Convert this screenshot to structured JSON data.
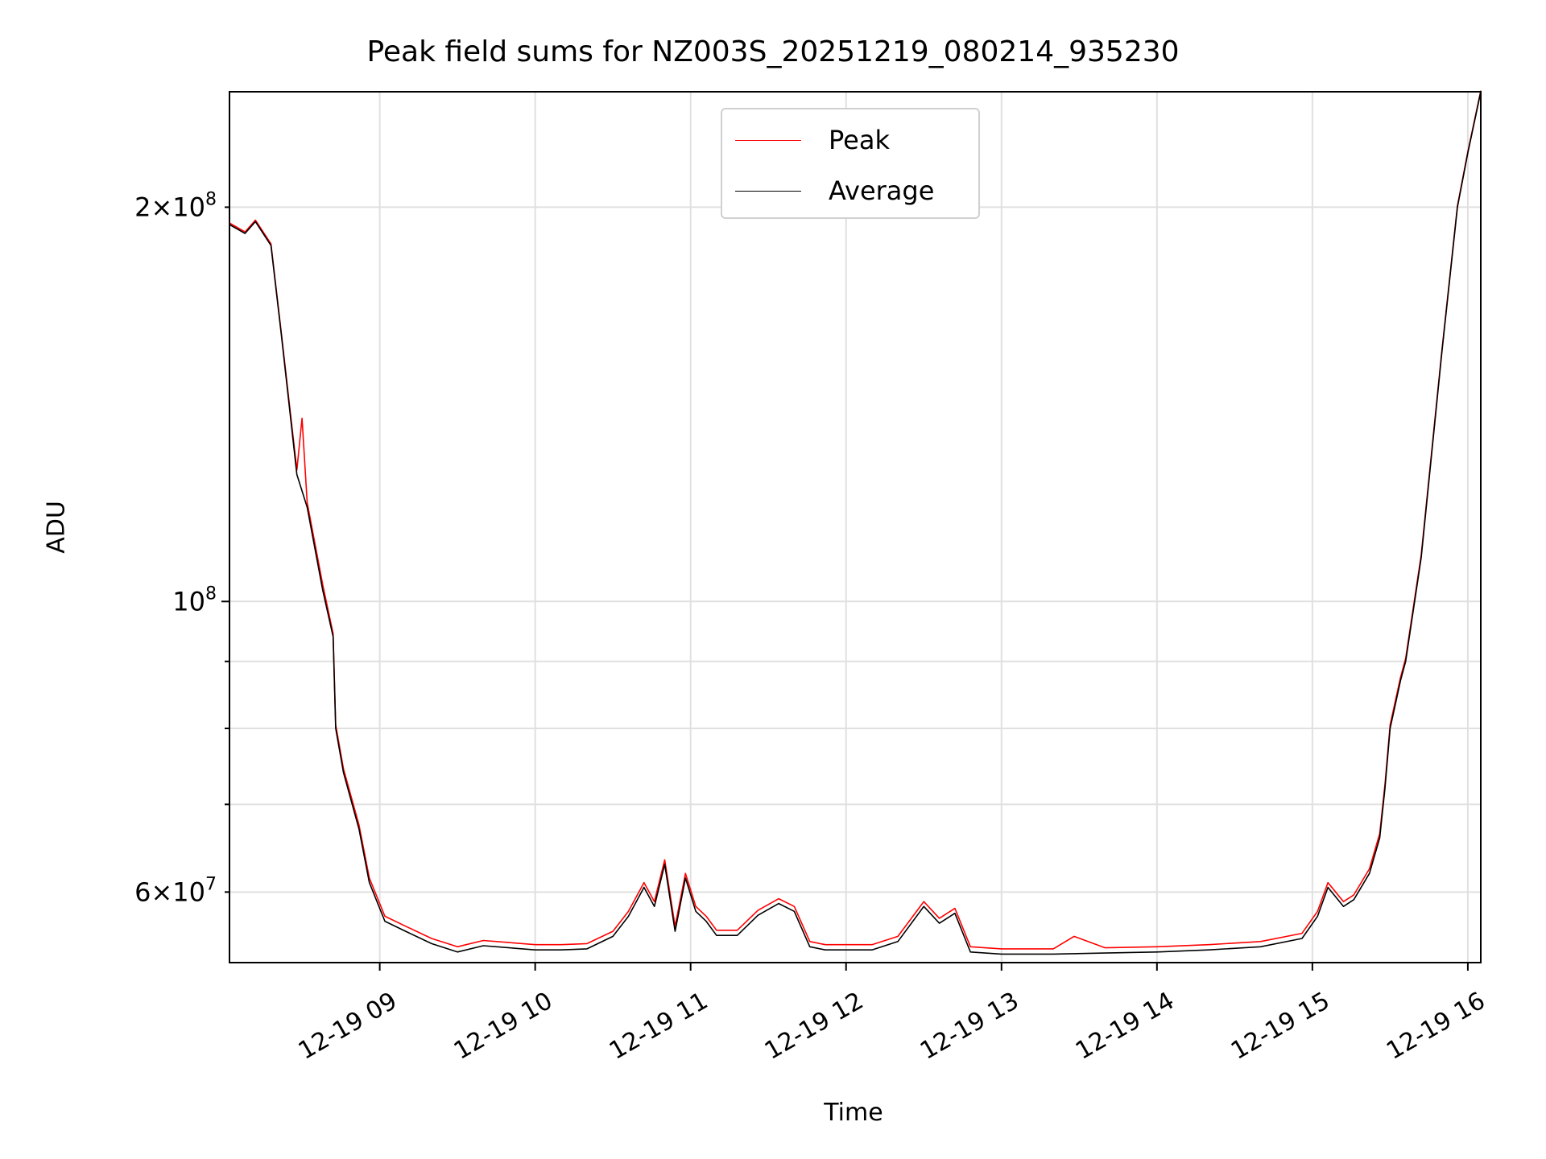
{
  "chart_data": {
    "type": "line",
    "title": "Peak field sums for NZ003S_20251219_080214_935230",
    "xlabel": "Time",
    "ylabel": "ADU",
    "yscale": "log",
    "xlim": [
      "2025-12-19 08:02",
      "2025-12-19 16:05"
    ],
    "ylim": [
      53000000,
      245000000
    ],
    "x_ticks": [
      {
        "value": "2025-12-19 09:00",
        "label": "12-19 09"
      },
      {
        "value": "2025-12-19 10:00",
        "label": "12-19 10"
      },
      {
        "value": "2025-12-19 11:00",
        "label": "12-19 11"
      },
      {
        "value": "2025-12-19 12:00",
        "label": "12-19 12"
      },
      {
        "value": "2025-12-19 13:00",
        "label": "12-19 13"
      },
      {
        "value": "2025-12-19 14:00",
        "label": "12-19 14"
      },
      {
        "value": "2025-12-19 15:00",
        "label": "12-19 15"
      },
      {
        "value": "2025-12-19 16:00",
        "label": "12-19 16"
      }
    ],
    "y_major_ticks": [
      {
        "value": 100000000,
        "label": "10^8"
      }
    ],
    "y_minor_ticks": [
      {
        "value": 60000000,
        "label": "6×10^7"
      },
      {
        "value": 70000000,
        "label": ""
      },
      {
        "value": 80000000,
        "label": ""
      },
      {
        "value": 90000000,
        "label": ""
      },
      {
        "value": 200000000,
        "label": "2×10^8"
      }
    ],
    "grid": true,
    "legend_position": "top-center",
    "series": [
      {
        "name": "Average",
        "color": "#000000",
        "x": [
          "2025-12-19 08:02",
          "2025-12-19 08:08",
          "2025-12-19 08:12",
          "2025-12-19 08:18",
          "2025-12-19 08:22",
          "2025-12-19 08:28",
          "2025-12-19 08:32",
          "2025-12-19 08:38",
          "2025-12-19 08:42",
          "2025-12-19 08:43",
          "2025-12-19 08:46",
          "2025-12-19 08:52",
          "2025-12-19 08:56",
          "2025-12-19 09:02",
          "2025-12-19 09:10",
          "2025-12-19 09:20",
          "2025-12-19 09:30",
          "2025-12-19 09:40",
          "2025-12-19 09:50",
          "2025-12-19 10:00",
          "2025-12-19 10:10",
          "2025-12-19 10:20",
          "2025-12-19 10:30",
          "2025-12-19 10:36",
          "2025-12-19 10:42",
          "2025-12-19 10:46",
          "2025-12-19 10:50",
          "2025-12-19 10:54",
          "2025-12-19 10:58",
          "2025-12-19 11:02",
          "2025-12-19 11:06",
          "2025-12-19 11:10",
          "2025-12-19 11:18",
          "2025-12-19 11:26",
          "2025-12-19 11:34",
          "2025-12-19 11:40",
          "2025-12-19 11:46",
          "2025-12-19 11:52",
          "2025-12-19 11:58",
          "2025-12-19 12:10",
          "2025-12-19 12:20",
          "2025-12-19 12:30",
          "2025-12-19 12:36",
          "2025-12-19 12:42",
          "2025-12-19 12:48",
          "2025-12-19 13:00",
          "2025-12-19 13:20",
          "2025-12-19 13:40",
          "2025-12-19 14:00",
          "2025-12-19 14:20",
          "2025-12-19 14:40",
          "2025-12-19 14:56",
          "2025-12-19 15:02",
          "2025-12-19 15:06",
          "2025-12-19 15:12",
          "2025-12-19 15:16",
          "2025-12-19 15:22",
          "2025-12-19 15:26",
          "2025-12-19 15:28",
          "2025-12-19 15:30",
          "2025-12-19 15:34",
          "2025-12-19 15:36",
          "2025-12-19 15:42",
          "2025-12-19 15:50",
          "2025-12-19 15:56",
          "2025-12-19 16:00",
          "2025-12-19 16:05"
        ],
        "values": [
          194000000,
          191000000,
          195000000,
          187000000,
          160000000,
          125000000,
          118000000,
          102000000,
          94000000,
          80000000,
          74000000,
          67000000,
          61000000,
          57000000,
          56000000,
          54800000,
          54000000,
          54600000,
          54400000,
          54200000,
          54200000,
          54300000,
          55500000,
          57500000,
          60500000,
          58500000,
          63000000,
          56000000,
          61500000,
          58000000,
          57000000,
          55600000,
          55600000,
          57600000,
          58800000,
          58000000,
          54500000,
          54200000,
          54200000,
          54200000,
          55000000,
          58500000,
          56800000,
          57800000,
          54000000,
          53800000,
          53800000,
          53900000,
          54000000,
          54200000,
          54500000,
          55300000,
          57500000,
          60500000,
          58500000,
          59200000,
          62000000,
          66000000,
          72000000,
          80000000,
          87000000,
          90000000,
          108000000,
          155000000,
          200000000,
          220000000,
          245000000
        ]
      },
      {
        "name": "Peak",
        "color": "#ff0000",
        "x": [
          "2025-12-19 08:02",
          "2025-12-19 08:08",
          "2025-12-19 08:12",
          "2025-12-19 08:18",
          "2025-12-19 08:22",
          "2025-12-19 08:28",
          "2025-12-19 08:30",
          "2025-12-19 08:32",
          "2025-12-19 08:38",
          "2025-12-19 08:42",
          "2025-12-19 08:43",
          "2025-12-19 08:46",
          "2025-12-19 08:52",
          "2025-12-19 08:56",
          "2025-12-19 09:02",
          "2025-12-19 09:10",
          "2025-12-19 09:20",
          "2025-12-19 09:30",
          "2025-12-19 09:40",
          "2025-12-19 09:50",
          "2025-12-19 10:00",
          "2025-12-19 10:10",
          "2025-12-19 10:20",
          "2025-12-19 10:30",
          "2025-12-19 10:36",
          "2025-12-19 10:42",
          "2025-12-19 10:46",
          "2025-12-19 10:50",
          "2025-12-19 10:54",
          "2025-12-19 10:58",
          "2025-12-19 11:02",
          "2025-12-19 11:06",
          "2025-12-19 11:10",
          "2025-12-19 11:18",
          "2025-12-19 11:26",
          "2025-12-19 11:34",
          "2025-12-19 11:40",
          "2025-12-19 11:46",
          "2025-12-19 11:52",
          "2025-12-19 11:58",
          "2025-12-19 12:10",
          "2025-12-19 12:20",
          "2025-12-19 12:30",
          "2025-12-19 12:36",
          "2025-12-19 12:42",
          "2025-12-19 12:48",
          "2025-12-19 13:00",
          "2025-12-19 13:20",
          "2025-12-19 13:28",
          "2025-12-19 13:40",
          "2025-12-19 14:00",
          "2025-12-19 14:20",
          "2025-12-19 14:40",
          "2025-12-19 14:56",
          "2025-12-19 15:02",
          "2025-12-19 15:06",
          "2025-12-19 15:12",
          "2025-12-19 15:16",
          "2025-12-19 15:22",
          "2025-12-19 15:26",
          "2025-12-19 15:28",
          "2025-12-19 15:30",
          "2025-12-19 15:34",
          "2025-12-19 15:36",
          "2025-12-19 15:42",
          "2025-12-19 15:50",
          "2025-12-19 15:56",
          "2025-12-19 16:00",
          "2025-12-19 16:05"
        ],
        "values": [
          194500000,
          191500000,
          195500000,
          187500000,
          160500000,
          126000000,
          138000000,
          119000000,
          103000000,
          94500000,
          80500000,
          74500000,
          67500000,
          61500000,
          57500000,
          56500000,
          55300000,
          54500000,
          55100000,
          54900000,
          54700000,
          54700000,
          54800000,
          56000000,
          58000000,
          61000000,
          59000000,
          63500000,
          56500000,
          62000000,
          58500000,
          57500000,
          56100000,
          56100000,
          58100000,
          59300000,
          58500000,
          55000000,
          54700000,
          54700000,
          54700000,
          55500000,
          59000000,
          57300000,
          58300000,
          54500000,
          54300000,
          54300000,
          55500000,
          54400000,
          54500000,
          54700000,
          55000000,
          55800000,
          58000000,
          61000000,
          59000000,
          59700000,
          62500000,
          66500000,
          72500000,
          80500000,
          87500000,
          90500000,
          108500000,
          155500000,
          200500000,
          220500000,
          245500000
        ]
      }
    ]
  }
}
